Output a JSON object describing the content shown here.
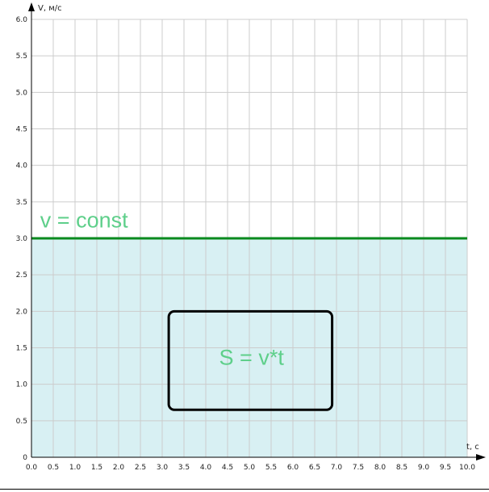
{
  "chart_data": {
    "type": "area",
    "xlabel": "t, c",
    "ylabel": "V, м/с",
    "xlim": [
      0,
      10
    ],
    "ylim": [
      0,
      6
    ],
    "x_ticks": [
      "0.0",
      "0.5",
      "1.0",
      "1.5",
      "2.0",
      "2.5",
      "3.0",
      "3.5",
      "4.0",
      "4.5",
      "5.0",
      "5.5",
      "6.0",
      "6.5",
      "7.0",
      "7.5",
      "8.0",
      "8.5",
      "9.0",
      "9.5",
      "10.0"
    ],
    "y_ticks": [
      "0",
      "0.5",
      "1.0",
      "1.5",
      "2.0",
      "2.5",
      "3.0",
      "3.5",
      "4.0",
      "4.5",
      "5.0",
      "5.5",
      "6.0"
    ],
    "grid": true,
    "series": [
      {
        "x": [
          0,
          10
        ],
        "y": [
          3,
          3
        ],
        "color": "#0a8a1e",
        "fill": "#d8f0f3"
      }
    ],
    "annotations": [
      {
        "text": "v = const",
        "x": 0.2,
        "y": 3.15,
        "color": "#5ecf8a"
      },
      {
        "text": "S = v*t",
        "x": 5.05,
        "y": 1.27,
        "color": "#5ecf8a",
        "box": {
          "x0": 3.15,
          "x1": 6.9,
          "y0": 0.65,
          "y1": 2.0
        }
      }
    ]
  }
}
